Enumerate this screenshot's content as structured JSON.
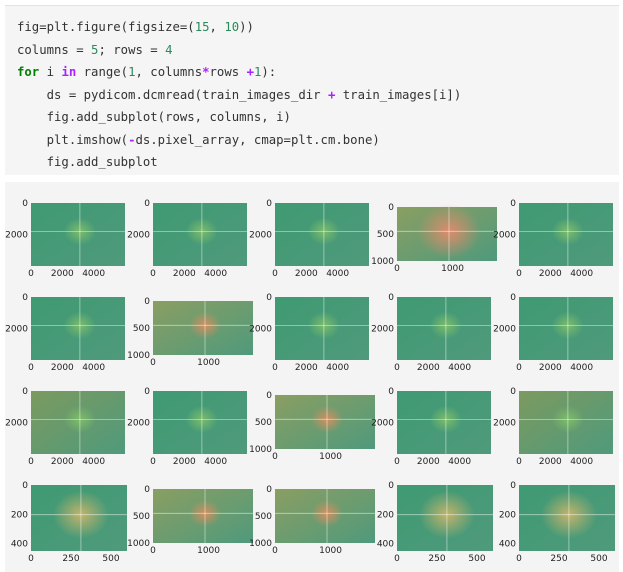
{
  "code_lines": [
    [
      "fig=plt.figure(figsize=(15, 10))"
    ],
    [
      "columns = 5; rows = 4"
    ],
    [
      "for i in range(1, columns*rows +1):"
    ],
    [
      "    ds = pydicom.dcmread(train_images_dir + train_images[i])"
    ],
    [
      "    fig.add_subplot(rows, columns, i)"
    ],
    [
      "    plt.imshow(-ds.pixel_array, cmap=plt.cm.bone)"
    ],
    [
      "    fig.add_subplot"
    ]
  ],
  "colors": {
    "green_bg": "#3f9a72",
    "green_light": "#6aa86b",
    "lesion_orange": "#d98e5f",
    "salmon": "#e48a6b",
    "olive": "#8a9e62"
  },
  "chart_data": [
    {
      "type": "image",
      "yticks": [
        "0",
        "2000"
      ],
      "xticks": [
        "0",
        "2000",
        "4000"
      ],
      "xlim": [
        0,
        6000
      ],
      "ylim": [
        0,
        4000
      ]
    },
    {
      "type": "image",
      "yticks": [
        "0",
        "2000"
      ],
      "xticks": [
        "0",
        "2000",
        "4000"
      ],
      "xlim": [
        0,
        6000
      ],
      "ylim": [
        0,
        4000
      ]
    },
    {
      "type": "image",
      "yticks": [
        "0",
        "2000"
      ],
      "xticks": [
        "0",
        "2000",
        "4000"
      ],
      "xlim": [
        0,
        6000
      ],
      "ylim": [
        0,
        4000
      ]
    },
    {
      "type": "image",
      "yticks": [
        "0",
        "500",
        "1000"
      ],
      "xticks": [
        "0",
        "1000"
      ],
      "xlim": [
        0,
        1800
      ],
      "ylim": [
        0,
        1000
      ]
    },
    {
      "type": "image",
      "yticks": [
        "0",
        "2000"
      ],
      "xticks": [
        "0",
        "2000",
        "4000"
      ],
      "xlim": [
        0,
        6000
      ],
      "ylim": [
        0,
        4000
      ]
    },
    {
      "type": "image",
      "yticks": [
        "0",
        "2000"
      ],
      "xticks": [
        "0",
        "2000",
        "4000"
      ],
      "xlim": [
        0,
        6000
      ],
      "ylim": [
        0,
        4000
      ]
    },
    {
      "type": "image",
      "yticks": [
        "0",
        "500",
        "1000"
      ],
      "xticks": [
        "0",
        "1000"
      ],
      "xlim": [
        0,
        1800
      ],
      "ylim": [
        0,
        1000
      ]
    },
    {
      "type": "image",
      "yticks": [
        "0",
        "2000"
      ],
      "xticks": [
        "0",
        "2000",
        "4000"
      ],
      "xlim": [
        0,
        6000
      ],
      "ylim": [
        0,
        4000
      ]
    },
    {
      "type": "image",
      "yticks": [
        "0",
        "2000"
      ],
      "xticks": [
        "0",
        "2000",
        "4000"
      ],
      "xlim": [
        0,
        6000
      ],
      "ylim": [
        0,
        4000
      ]
    },
    {
      "type": "image",
      "yticks": [
        "0",
        "2000"
      ],
      "xticks": [
        "0",
        "2000",
        "4000"
      ],
      "xlim": [
        0,
        6000
      ],
      "ylim": [
        0,
        4000
      ]
    },
    {
      "type": "image",
      "yticks": [
        "0",
        "2000"
      ],
      "xticks": [
        "0",
        "2000",
        "4000"
      ],
      "xlim": [
        0,
        6000
      ],
      "ylim": [
        0,
        4000
      ]
    },
    {
      "type": "image",
      "yticks": [
        "0",
        "2000"
      ],
      "xticks": [
        "0",
        "2000",
        "4000"
      ],
      "xlim": [
        0,
        6000
      ],
      "ylim": [
        0,
        4000
      ]
    },
    {
      "type": "image",
      "yticks": [
        "0",
        "500",
        "1000"
      ],
      "xticks": [
        "0",
        "1000"
      ],
      "xlim": [
        0,
        1800
      ],
      "ylim": [
        0,
        1000
      ]
    },
    {
      "type": "image",
      "yticks": [
        "0",
        "2000"
      ],
      "xticks": [
        "0",
        "2000",
        "4000"
      ],
      "xlim": [
        0,
        6000
      ],
      "ylim": [
        0,
        4000
      ]
    },
    {
      "type": "image",
      "yticks": [
        "0",
        "2000"
      ],
      "xticks": [
        "0",
        "2000",
        "4000"
      ],
      "xlim": [
        0,
        6000
      ],
      "ylim": [
        0,
        4000
      ]
    },
    {
      "type": "image",
      "yticks": [
        "0",
        "200",
        "400"
      ],
      "xticks": [
        "0",
        "250",
        "500"
      ],
      "xlim": [
        0,
        600
      ],
      "ylim": [
        0,
        450
      ]
    },
    {
      "type": "image",
      "yticks": [
        "0",
        "500",
        "1000"
      ],
      "xticks": [
        "0",
        "1000"
      ],
      "xlim": [
        0,
        1800
      ],
      "ylim": [
        0,
        1000
      ]
    },
    {
      "type": "image",
      "yticks": [
        "0",
        "500",
        "1000"
      ],
      "xticks": [
        "0",
        "1000"
      ],
      "xlim": [
        0,
        1800
      ],
      "ylim": [
        0,
        1000
      ]
    },
    {
      "type": "image",
      "yticks": [
        "0",
        "200",
        "400"
      ],
      "xticks": [
        "0",
        "250",
        "500"
      ],
      "xlim": [
        0,
        600
      ],
      "ylim": [
        0,
        450
      ]
    },
    {
      "type": "image",
      "yticks": [
        "0",
        "200",
        "400"
      ],
      "xticks": [
        "0",
        "250",
        "500"
      ],
      "xlim": [
        0,
        600
      ],
      "ylim": [
        0,
        450
      ]
    }
  ]
}
